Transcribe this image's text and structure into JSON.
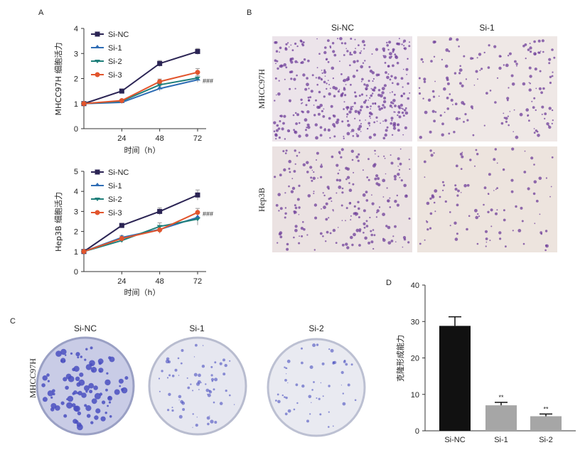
{
  "panels": {
    "a": "A",
    "b": "B",
    "c": "C",
    "d": "D"
  },
  "legend_items": [
    "Si-NC",
    "Si-1",
    "Si-2",
    "Si-3"
  ],
  "colors": {
    "Si-NC": "#2b2454",
    "Si-1": "#2f6db5",
    "Si-2": "#1f7f7a",
    "Si-3": "#e2552d",
    "bar_nc": "#111111",
    "bar_si": "#a6a6a6",
    "dish": "#4a4fc0",
    "stain": "#6f3f9a"
  },
  "chart_data": [
    {
      "id": "A1",
      "type": "line",
      "ylabel": "MHCC97H 细胞活力",
      "xlabel": "时间（h）",
      "x": [
        0,
        24,
        48,
        72
      ],
      "xticks": [
        "24",
        "48",
        "72"
      ],
      "ylim": [
        0,
        4
      ],
      "yticks": [
        "0",
        "1",
        "2",
        "3",
        "4"
      ],
      "significance": "###",
      "series": [
        {
          "name": "Si-NC",
          "values": [
            1.0,
            1.5,
            2.6,
            3.08
          ],
          "err": [
            0.04,
            0.05,
            0.12,
            0.12
          ]
        },
        {
          "name": "Si-1",
          "values": [
            1.0,
            1.05,
            1.6,
            1.95
          ],
          "err": [
            0.04,
            0.05,
            0.1,
            0.1
          ]
        },
        {
          "name": "Si-2",
          "values": [
            1.0,
            1.1,
            1.75,
            2.02
          ],
          "err": [
            0.04,
            0.05,
            0.1,
            0.1
          ]
        },
        {
          "name": "Si-3",
          "values": [
            1.0,
            1.12,
            1.88,
            2.25
          ],
          "err": [
            0.04,
            0.05,
            0.1,
            0.15
          ]
        }
      ]
    },
    {
      "id": "A2",
      "type": "line",
      "ylabel": "Hep3B 细胞活力",
      "xlabel": "时间（h）",
      "x": [
        0,
        24,
        48,
        72
      ],
      "xticks": [
        "24",
        "48",
        "72"
      ],
      "ylim": [
        0,
        5
      ],
      "yticks": [
        "0",
        "1",
        "2",
        "3",
        "4",
        "5"
      ],
      "significance": "###",
      "series": [
        {
          "name": "Si-NC",
          "values": [
            1.0,
            2.3,
            3.0,
            3.82
          ],
          "err": [
            0.05,
            0.1,
            0.18,
            0.25
          ]
        },
        {
          "name": "Si-1",
          "values": [
            1.0,
            1.7,
            2.1,
            2.7
          ],
          "err": [
            0.05,
            0.1,
            0.18,
            0.25
          ]
        },
        {
          "name": "Si-2",
          "values": [
            1.0,
            1.55,
            2.25,
            2.62
          ],
          "err": [
            0.05,
            0.1,
            0.18,
            0.3
          ]
        },
        {
          "name": "Si-3",
          "values": [
            1.0,
            1.65,
            2.08,
            2.95
          ],
          "err": [
            0.05,
            0.1,
            0.18,
            0.2
          ]
        }
      ]
    },
    {
      "id": "D",
      "type": "bar",
      "ylabel": "克隆形成能力",
      "categories": [
        "Si-NC",
        "Si-1",
        "Si-2"
      ],
      "values": [
        28.8,
        7.0,
        4.0
      ],
      "err": [
        2.5,
        0.8,
        0.6
      ],
      "ylim": [
        0,
        40
      ],
      "yticks": [
        "0",
        "10",
        "20",
        "30",
        "40"
      ],
      "significance": [
        "",
        "**",
        "**"
      ]
    }
  ],
  "panel_b": {
    "columns": [
      "Si-NC",
      "Si-1"
    ],
    "rows": [
      "MHCC97H",
      "Hep3B"
    ]
  },
  "panel_c": {
    "row_label": "MHCC97H",
    "dishes": [
      "Si-NC",
      "Si-1",
      "Si-2"
    ]
  }
}
